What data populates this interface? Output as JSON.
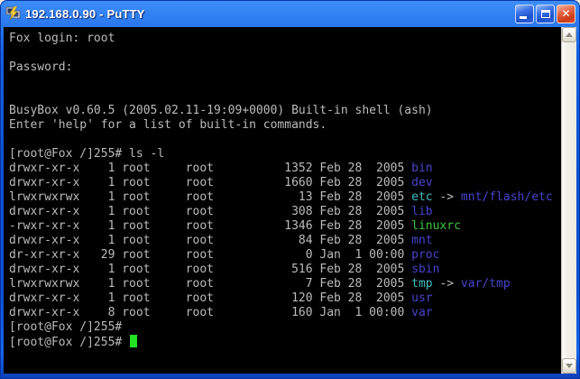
{
  "window": {
    "title": "192.168.0.90 - PuTTY",
    "controls": {
      "minimize_icon": "minimize-icon",
      "maximize_icon": "maximize-icon",
      "close_icon": "close-icon",
      "close_glyph": "✕"
    }
  },
  "terminal": {
    "colors": {
      "background": "#000000",
      "foreground": "#BBBBBB",
      "directory": "#4545CE",
      "symlink": "#3FBFBF",
      "executable": "#3EC43E",
      "cursor": "#21E321"
    },
    "boot_lines": [
      "Fox login: root",
      "",
      "Password:",
      "",
      "",
      "BusyBox v0.60.5 (2005.02.11-19:09+0000) Built-in shell (ash)",
      "Enter 'help' for a list of built-in commands.",
      ""
    ],
    "command_line": {
      "prompt": "[root@Fox /]255# ",
      "command": "ls -l"
    },
    "listing": [
      {
        "permissions": "drwxr-xr-x",
        "links": 1,
        "owner": "root",
        "group": "root",
        "size": 1352,
        "date": "Feb 28  2005",
        "name": "bin",
        "type": "directory"
      },
      {
        "permissions": "drwxr-xr-x",
        "links": 1,
        "owner": "root",
        "group": "root",
        "size": 1660,
        "date": "Feb 28  2005",
        "name": "dev",
        "type": "directory"
      },
      {
        "permissions": "lrwxrwxrwx",
        "links": 1,
        "owner": "root",
        "group": "root",
        "size": 13,
        "date": "Feb 28  2005",
        "name": "etc",
        "type": "symlink",
        "target": "mnt/flash/etc"
      },
      {
        "permissions": "drwxr-xr-x",
        "links": 1,
        "owner": "root",
        "group": "root",
        "size": 308,
        "date": "Feb 28  2005",
        "name": "lib",
        "type": "directory"
      },
      {
        "permissions": "-rwxr-xr-x",
        "links": 1,
        "owner": "root",
        "group": "root",
        "size": 1346,
        "date": "Feb 28  2005",
        "name": "linuxrc",
        "type": "executable"
      },
      {
        "permissions": "drwxr-xr-x",
        "links": 1,
        "owner": "root",
        "group": "root",
        "size": 84,
        "date": "Feb 28  2005",
        "name": "mnt",
        "type": "directory"
      },
      {
        "permissions": "dr-xr-xr-x",
        "links": 29,
        "owner": "root",
        "group": "root",
        "size": 0,
        "date": "Jan  1 00:00",
        "name": "proc",
        "type": "directory"
      },
      {
        "permissions": "drwxr-xr-x",
        "links": 1,
        "owner": "root",
        "group": "root",
        "size": 516,
        "date": "Feb 28  2005",
        "name": "sbin",
        "type": "directory"
      },
      {
        "permissions": "lrwxrwxrwx",
        "links": 1,
        "owner": "root",
        "group": "root",
        "size": 7,
        "date": "Feb 28  2005",
        "name": "tmp",
        "type": "symlink",
        "target": "var/tmp"
      },
      {
        "permissions": "drwxr-xr-x",
        "links": 1,
        "owner": "root",
        "group": "root",
        "size": 120,
        "date": "Feb 28  2005",
        "name": "usr",
        "type": "directory"
      },
      {
        "permissions": "drwxr-xr-x",
        "links": 8,
        "owner": "root",
        "group": "root",
        "size": 160,
        "date": "Jan  1 00:00",
        "name": "var",
        "type": "directory"
      }
    ],
    "link_arrow": " -> ",
    "trailing_prompts": [
      "[root@Fox /]255#",
      "[root@Fox /]255# "
    ],
    "cursor_visible": true
  }
}
